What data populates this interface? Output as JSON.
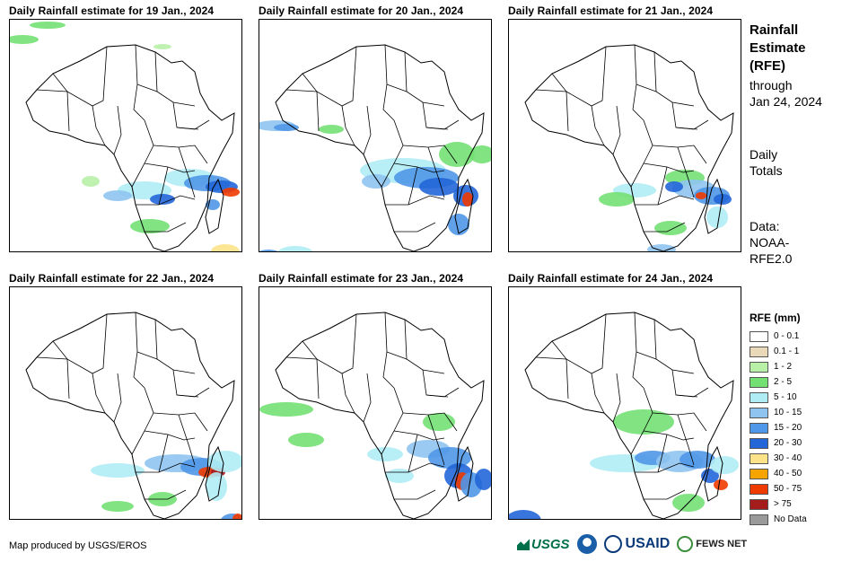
{
  "panels": [
    {
      "title": "Daily Rainfall estimate for 19 Jan., 2024",
      "day": 19
    },
    {
      "title": "Daily Rainfall estimate for 20 Jan., 2024",
      "day": 20
    },
    {
      "title": "Daily Rainfall estimate for 21 Jan., 2024",
      "day": 21
    },
    {
      "title": "Daily Rainfall estimate for 22 Jan., 2024",
      "day": 22
    },
    {
      "title": "Daily Rainfall estimate for 23 Jan., 2024",
      "day": 23
    },
    {
      "title": "Daily Rainfall estimate for 24 Jan., 2024",
      "day": 24
    }
  ],
  "side": {
    "title_line1": "Rainfall",
    "title_line2": "Estimate",
    "title_line3": "(RFE)",
    "through_label": "through",
    "through_date": "Jan 24, 2024",
    "daily_line1": "Daily",
    "daily_line2": "Totals",
    "data_line1": "Data:",
    "data_line2": "NOAA-",
    "data_line3": "RFE2.0"
  },
  "legend": {
    "title": "RFE (mm)",
    "items": [
      {
        "label": "0 - 0.1",
        "color": "#ffffff"
      },
      {
        "label": "0.1 - 1",
        "color": "#ead9b8"
      },
      {
        "label": "1 - 2",
        "color": "#b8f0a8"
      },
      {
        "label": "2 - 5",
        "color": "#73e073"
      },
      {
        "label": "5 - 10",
        "color": "#b0ecf4"
      },
      {
        "label": "10 - 15",
        "color": "#8fc4f0"
      },
      {
        "label": "15 - 20",
        "color": "#4f97e8"
      },
      {
        "label": "20 - 30",
        "color": "#2266d8"
      },
      {
        "label": "30 - 40",
        "color": "#fce38a"
      },
      {
        "label": "40 - 50",
        "color": "#f5a400"
      },
      {
        "label": "50 - 75",
        "color": "#ef3b00"
      },
      {
        "label": "> 75",
        "color": "#a51c1c"
      },
      {
        "label": "No Data",
        "color": "#9a9a9a"
      }
    ]
  },
  "footer": {
    "credit": "Map produced by USGS/EROS",
    "logo_usgs": "USGS",
    "logo_usaid": "USAID",
    "logo_fews": "FEWS NET"
  }
}
